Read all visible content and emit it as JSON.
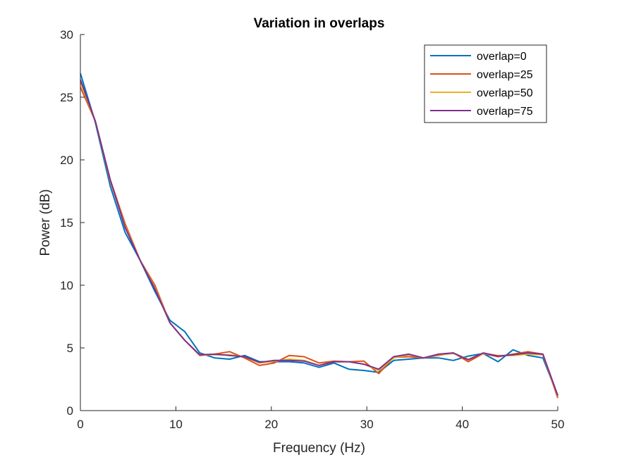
{
  "chart_data": {
    "type": "line",
    "title": "Variation in overlaps",
    "xlabel": "Frequency (Hz)",
    "ylabel": "Power (dB)",
    "xlim": [
      0,
      50
    ],
    "ylim": [
      0,
      30
    ],
    "xticks": [
      0,
      10,
      20,
      30,
      40,
      50
    ],
    "yticks": [
      0,
      5,
      10,
      15,
      20,
      25,
      30
    ],
    "legend_position": "top-right",
    "grid": false,
    "x": [
      0,
      1.56,
      3.13,
      4.69,
      6.25,
      7.81,
      9.38,
      10.94,
      12.5,
      14.06,
      15.63,
      17.19,
      18.75,
      20.31,
      21.88,
      23.44,
      25,
      26.56,
      28.13,
      29.69,
      31.25,
      32.81,
      34.38,
      35.94,
      37.5,
      39.06,
      40.63,
      42.19,
      43.75,
      45.31,
      46.88,
      48.44,
      50
    ],
    "series": [
      {
        "name": "overlap=0",
        "color": "#0072BD",
        "values": [
          26.9,
          23.0,
          17.9,
          14.2,
          12.0,
          9.5,
          7.2,
          6.3,
          4.6,
          4.2,
          4.1,
          4.4,
          3.9,
          3.9,
          3.9,
          3.8,
          3.45,
          3.8,
          3.3,
          3.2,
          3.05,
          4.0,
          4.1,
          4.2,
          4.2,
          4.0,
          4.35,
          4.55,
          3.9,
          4.85,
          4.4,
          4.2,
          1.2
        ]
      },
      {
        "name": "overlap=25",
        "color": "#D95319",
        "values": [
          25.8,
          23.1,
          18.4,
          14.9,
          12.0,
          10.0,
          7.0,
          5.6,
          4.4,
          4.5,
          4.7,
          4.2,
          3.6,
          3.8,
          4.4,
          4.3,
          3.8,
          3.95,
          3.9,
          3.95,
          2.95,
          4.25,
          4.3,
          4.2,
          4.4,
          4.6,
          3.9,
          4.55,
          4.3,
          4.5,
          4.7,
          4.5,
          1.0
        ]
      },
      {
        "name": "overlap=50",
        "color": "#EDB120",
        "values": [
          26.2,
          23.1,
          18.3,
          14.7,
          12.0,
          9.8,
          7.0,
          5.6,
          4.45,
          4.45,
          4.45,
          4.3,
          3.8,
          3.95,
          4.1,
          4.0,
          3.6,
          3.9,
          3.9,
          3.7,
          3.2,
          4.2,
          4.45,
          4.2,
          4.45,
          4.55,
          4.1,
          4.55,
          4.4,
          4.4,
          4.5,
          4.45,
          1.15
        ]
      },
      {
        "name": "overlap=75",
        "color": "#7E2F8E",
        "values": [
          26.4,
          23.1,
          18.4,
          14.6,
          12.0,
          9.7,
          7.0,
          5.6,
          4.45,
          4.5,
          4.4,
          4.3,
          3.85,
          4.0,
          4.0,
          3.95,
          3.6,
          3.9,
          3.9,
          3.7,
          3.3,
          4.3,
          4.5,
          4.2,
          4.5,
          4.6,
          4.05,
          4.6,
          4.35,
          4.45,
          4.6,
          4.5,
          1.2
        ]
      }
    ]
  }
}
